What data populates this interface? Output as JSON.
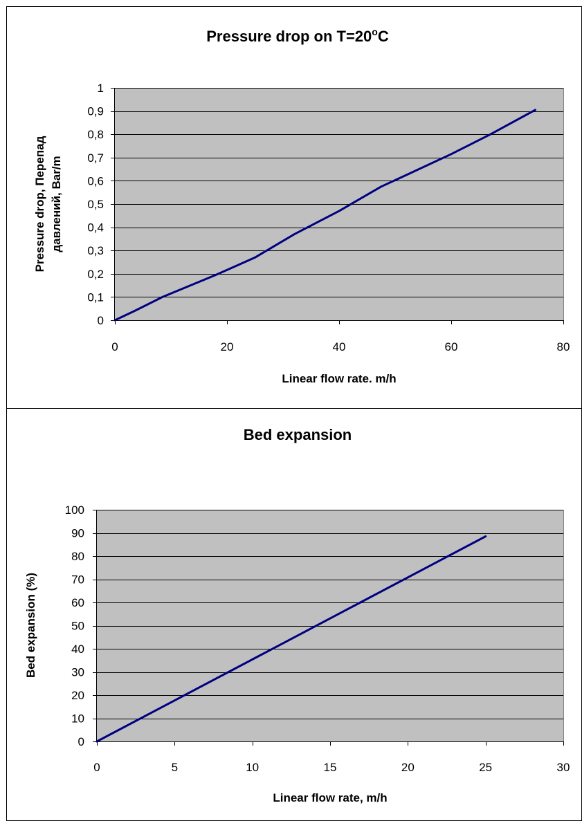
{
  "colors": {
    "plot_background": "#c0c0c0",
    "gridline": "#000000",
    "series_line": "#000080",
    "frame": "#000000"
  },
  "chart_data": [
    {
      "type": "line",
      "title": "Pressure drop on T=20",
      "title_superscript": "o",
      "title_suffix": "C",
      "xlabel": "Linear flow rate. m/h",
      "ylabel_lines": [
        "Pressure drop, Перепад",
        "давлений, Bar/m"
      ],
      "xlim": [
        0,
        80
      ],
      "ylim": [
        0,
        1
      ],
      "xticks": [
        0,
        20,
        40,
        60,
        80
      ],
      "xtick_labels": [
        "0",
        "20",
        "40",
        "60",
        "80"
      ],
      "yticks": [
        0,
        0.1,
        0.2,
        0.3,
        0.4,
        0.5,
        0.6,
        0.7,
        0.8,
        0.9,
        1
      ],
      "ytick_labels": [
        "0",
        "0,1",
        "0,2",
        "0,3",
        "0,4",
        "0,5",
        "0,6",
        "0,7",
        "0,8",
        "0,9",
        "1"
      ],
      "grid": "horizontal",
      "legend": "none",
      "series": [
        {
          "x": [
            0,
            3.5,
            6,
            8.5,
            12,
            18,
            25,
            32,
            40,
            45,
            47.5,
            52,
            60,
            67,
            75
          ],
          "y": [
            0,
            0.04,
            0.07,
            0.1,
            0.135,
            0.195,
            0.27,
            0.37,
            0.47,
            0.54,
            0.575,
            0.625,
            0.715,
            0.8,
            0.905
          ]
        }
      ]
    },
    {
      "type": "line",
      "title": "Bed expansion",
      "xlabel": "Linear flow rate, m/h",
      "ylabel_lines": [
        "Bed expansion (%)"
      ],
      "xlim": [
        0,
        30
      ],
      "ylim": [
        0,
        100
      ],
      "xticks": [
        0,
        5,
        10,
        15,
        20,
        25,
        30
      ],
      "xtick_labels": [
        "0",
        "5",
        "10",
        "15",
        "20",
        "25",
        "30"
      ],
      "yticks": [
        0,
        10,
        20,
        30,
        40,
        50,
        60,
        70,
        80,
        90,
        100
      ],
      "ytick_labels": [
        "0",
        "10",
        "20",
        "30",
        "40",
        "50",
        "60",
        "70",
        "80",
        "90",
        "100"
      ],
      "grid": "horizontal",
      "legend": "none",
      "series": [
        {
          "x": [
            0,
            25
          ],
          "y": [
            0,
            88.5
          ]
        }
      ]
    }
  ]
}
